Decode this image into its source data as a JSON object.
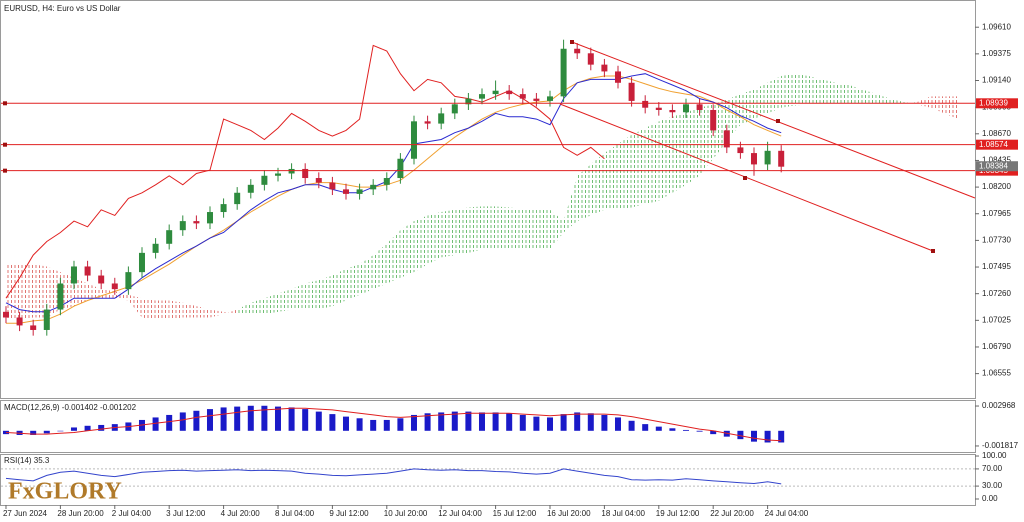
{
  "chart_data": [
    {
      "type": "candlestick",
      "title": "EURUSD, H4:  Euro vs US Dollar",
      "up_color": "#2e8b3e",
      "down_color": "#c8203a",
      "xlim": [
        -0.44,
        71.25
      ],
      "ylim": [
        1.0634,
        1.0985
      ],
      "yticks": [
        {
          "value": 1.0961,
          "label": "1.09610"
        },
        {
          "value": 1.09375,
          "label": "1.09375"
        },
        {
          "value": 1.0914,
          "label": "1.09140"
        },
        {
          "value": 1.08905,
          "label": "1.08905"
        },
        {
          "value": 1.0867,
          "label": "1.08670"
        },
        {
          "value": 1.08435,
          "label": "1.08435"
        },
        {
          "value": 1.082,
          "label": "1.08200"
        },
        {
          "value": 1.07965,
          "label": "1.07965"
        },
        {
          "value": 1.0773,
          "label": "1.07730"
        },
        {
          "value": 1.07495,
          "label": "1.07495"
        },
        {
          "value": 1.0726,
          "label": "1.07260"
        },
        {
          "value": 1.07025,
          "label": "1.07025"
        },
        {
          "value": 1.0679,
          "label": "1.06790"
        },
        {
          "value": 1.06555,
          "label": "1.06555"
        }
      ],
      "xticks": [
        {
          "value": 0,
          "label": "27 Jun 2024"
        },
        {
          "value": 4,
          "label": "28 Jun 20:00"
        },
        {
          "value": 8,
          "label": "2 Jul 04:00"
        },
        {
          "value": 12,
          "label": "3 Jul 12:00"
        },
        {
          "value": 16,
          "label": "4 Jul 20:00"
        },
        {
          "value": 20,
          "label": "8 Jul 04:00"
        },
        {
          "value": 24,
          "label": "9 Jul 12:00"
        },
        {
          "value": 28,
          "label": "10 Jul 20:00"
        },
        {
          "value": 32,
          "label": "12 Jul 04:00"
        },
        {
          "value": 36,
          "label": "15 Jul 12:00"
        },
        {
          "value": 40,
          "label": "16 Jul 20:00"
        },
        {
          "value": 44,
          "label": "18 Jul 04:00"
        },
        {
          "value": 48,
          "label": "19 Jul 12:00"
        },
        {
          "value": 52,
          "label": "22 Jul 20:00"
        },
        {
          "value": 56,
          "label": "24 Jul 04:00"
        }
      ],
      "open": [
        1.071,
        1.0705,
        1.0698,
        1.0694,
        1.0712,
        1.0735,
        1.075,
        1.0742,
        1.0735,
        1.073,
        1.0745,
        1.0762,
        1.077,
        1.0782,
        1.079,
        1.0788,
        1.0798,
        1.0805,
        1.0815,
        1.0822,
        1.083,
        1.0832,
        1.0836,
        1.0828,
        1.0824,
        1.0818,
        1.0814,
        1.0818,
        1.0822,
        1.0828,
        1.0845,
        1.0878,
        1.0876,
        1.0885,
        1.0893,
        1.0898,
        1.0902,
        1.0905,
        1.0902,
        1.0898,
        1.0896,
        1.09,
        1.0942,
        1.0938,
        1.0928,
        1.0922,
        1.0912,
        1.0896,
        1.089,
        1.0888,
        1.0886,
        1.0893,
        1.0888,
        1.087,
        1.0855,
        1.085,
        1.084,
        1.0852
      ],
      "high": [
        1.0715,
        1.071,
        1.0703,
        1.0717,
        1.074,
        1.0755,
        1.0755,
        1.0747,
        1.074,
        1.075,
        1.0767,
        1.0775,
        1.0787,
        1.0795,
        1.0795,
        1.0803,
        1.081,
        1.082,
        1.0827,
        1.0835,
        1.0837,
        1.0841,
        1.0841,
        1.0833,
        1.0829,
        1.0823,
        1.0823,
        1.0827,
        1.0833,
        1.085,
        1.0883,
        1.0883,
        1.089,
        1.0898,
        1.0903,
        1.0907,
        1.0914,
        1.091,
        1.0907,
        1.0903,
        1.0905,
        1.095,
        1.0947,
        1.0943,
        1.0933,
        1.0927,
        1.0917,
        1.0901,
        1.0895,
        1.0893,
        1.0898,
        1.0898,
        1.0893,
        1.0875,
        1.086,
        1.0855,
        1.086,
        1.0857
      ],
      "low": [
        1.07,
        1.0693,
        1.0689,
        1.0689,
        1.0707,
        1.073,
        1.0737,
        1.073,
        1.0725,
        1.0725,
        1.074,
        1.0757,
        1.0765,
        1.0777,
        1.0783,
        1.0783,
        1.0793,
        1.08,
        1.081,
        1.0817,
        1.0825,
        1.0827,
        1.0823,
        1.0819,
        1.0813,
        1.0809,
        1.0809,
        1.0813,
        1.0817,
        1.0823,
        1.084,
        1.0871,
        1.0871,
        1.088,
        1.0888,
        1.0893,
        1.0897,
        1.0897,
        1.0893,
        1.0891,
        1.0891,
        1.0895,
        1.0933,
        1.0923,
        1.0917,
        1.0907,
        1.0891,
        1.0885,
        1.0883,
        1.0881,
        1.0881,
        1.0883,
        1.0865,
        1.085,
        1.0845,
        1.083,
        1.0835,
        1.0833
      ],
      "close": [
        1.0705,
        1.0698,
        1.0694,
        1.0712,
        1.0735,
        1.075,
        1.0742,
        1.0735,
        1.073,
        1.0745,
        1.0762,
        1.077,
        1.0782,
        1.079,
        1.0788,
        1.0798,
        1.0805,
        1.0815,
        1.0822,
        1.083,
        1.0832,
        1.0836,
        1.0828,
        1.0824,
        1.0818,
        1.0814,
        1.0818,
        1.0822,
        1.0828,
        1.0845,
        1.0878,
        1.0876,
        1.0885,
        1.0893,
        1.0898,
        1.0902,
        1.0905,
        1.0902,
        1.0898,
        1.0896,
        1.09,
        1.0942,
        1.0938,
        1.0928,
        1.0922,
        1.0912,
        1.0896,
        1.089,
        1.0888,
        1.0886,
        1.0893,
        1.0888,
        1.087,
        1.0855,
        1.085,
        1.084,
        1.0852,
        1.0838
      ],
      "cloud": {
        "up_color": "#4caf50",
        "down_color": "#d9534f",
        "span_a": [
          1.0703,
          1.0703,
          1.0705,
          1.0705,
          1.0712,
          1.0715,
          1.072,
          1.0722,
          1.0722,
          1.072,
          1.0705,
          1.0703,
          1.0703,
          1.0705,
          1.0705,
          1.0705,
          1.0708,
          1.0712,
          1.0718,
          1.0722,
          1.0726,
          1.073,
          1.0735,
          1.0738,
          1.0742,
          1.0748,
          1.0752,
          1.076,
          1.077,
          1.0782,
          1.079,
          1.0795,
          1.0798,
          1.08,
          1.0802,
          1.0803,
          1.0803,
          1.0802,
          1.0801,
          1.08,
          1.08,
          1.079,
          1.083,
          1.084,
          1.085,
          1.0858,
          1.0866,
          1.0872,
          1.0878,
          1.0882,
          1.0886,
          1.089,
          1.0893,
          1.0897,
          1.0902,
          1.0906,
          1.0912,
          1.0918,
          1.092,
          1.0918,
          1.0915,
          1.0912,
          1.091,
          1.0906,
          1.0902,
          1.0898,
          1.0895,
          1.0893,
          1.089,
          1.0885,
          1.088
        ],
        "span_b": [
          1.0752,
          1.0752,
          1.0752,
          1.075,
          1.0745,
          1.074,
          1.0735,
          1.073,
          1.0728,
          1.0725,
          1.0722,
          1.072,
          1.072,
          1.0718,
          1.0715,
          1.0712,
          1.071,
          1.0708,
          1.0708,
          1.0708,
          1.071,
          1.0712,
          1.0712,
          1.0712,
          1.0715,
          1.072,
          1.0725,
          1.073,
          1.0735,
          1.074,
          1.0745,
          1.0752,
          1.0758,
          1.076,
          1.0762,
          1.0765,
          1.0765,
          1.0765,
          1.0765,
          1.0765,
          1.0765,
          1.078,
          1.079,
          1.0795,
          1.08,
          1.08,
          1.0802,
          1.0805,
          1.0808,
          1.0815,
          1.0822,
          1.083,
          1.0845,
          1.086,
          1.0875,
          1.088,
          1.0885,
          1.089,
          1.0892,
          1.0893,
          1.0893,
          1.0893,
          1.0893,
          1.0893,
          1.0893,
          1.0893,
          1.0893,
          1.0895,
          1.09,
          1.09,
          1.09
        ]
      },
      "lines": [
        {
          "color": "#e02020",
          "values": [
            1.0722,
            1.074,
            1.076,
            1.0772,
            1.078,
            1.079,
            1.0785,
            1.08,
            1.0795,
            1.081,
            1.0815,
            1.0822,
            1.083,
            1.0822,
            1.0832,
            1.0835,
            1.088,
            1.0875,
            1.087,
            1.0862,
            1.0872,
            1.0885,
            1.0878,
            1.087,
            1.0865,
            1.087,
            1.088,
            1.0945,
            1.094,
            1.092,
            1.0905,
            1.0915,
            1.0912,
            1.09,
            1.0898,
            1.0895,
            1.09,
            1.0905,
            1.0898,
            1.089,
            1.088,
            1.0855,
            1.0848,
            1.0855,
            1.0845,
            null,
            null,
            null,
            null,
            null,
            null,
            null,
            null,
            null,
            null,
            null,
            null,
            null
          ]
        },
        {
          "color": "#f0a030",
          "values": [
            1.07,
            1.07,
            1.0702,
            1.0703,
            1.0708,
            1.0715,
            1.072,
            1.0724,
            1.0728,
            1.0732,
            1.0738,
            1.0745,
            1.0752,
            1.076,
            1.0768,
            1.0775,
            1.0782,
            1.079,
            1.0798,
            1.0805,
            1.0812,
            1.0818,
            1.0822,
            1.0824,
            1.0824,
            1.0822,
            1.082,
            1.082,
            1.0822,
            1.0826,
            1.0835,
            1.0845,
            1.0855,
            1.0864,
            1.0872,
            1.088,
            1.0886,
            1.089,
            1.0893,
            1.0895,
            1.0896,
            1.0905,
            1.0912,
            1.0916,
            1.0918,
            1.0918,
            1.0915,
            1.0911,
            1.0907,
            1.0904,
            1.0902,
            1.09,
            1.0895,
            1.0888,
            1.0882,
            1.0875,
            1.087,
            1.0865
          ]
        },
        {
          "color": "#2a2ad0",
          "values": [
            1.0718,
            1.0712,
            1.071,
            1.071,
            1.0715,
            1.0722,
            1.0722,
            1.0722,
            1.0722,
            1.073,
            1.074,
            1.0748,
            1.0755,
            1.0762,
            1.0768,
            1.0775,
            1.078,
            1.079,
            1.08,
            1.0808,
            1.0815,
            1.0818,
            1.0822,
            1.0822,
            1.0818,
            1.0815,
            1.0815,
            1.082,
            1.0825,
            1.0838,
            1.0858,
            1.086,
            1.0862,
            1.0868,
            1.0872,
            1.0878,
            1.0885,
            1.0882,
            1.0882,
            1.088,
            1.0875,
            1.0898,
            1.0912,
            1.0915,
            1.0915,
            1.0915,
            1.0918,
            1.092,
            1.0915,
            1.091,
            1.0905,
            1.0898,
            1.0895,
            1.089,
            1.0883,
            1.0878,
            1.0872,
            1.0868
          ]
        }
      ],
      "levels": [
        {
          "value": 1.08939,
          "color": "#e02020"
        },
        {
          "value": 1.08574,
          "color": "#e02020"
        },
        {
          "value": 1.08345,
          "color": "#e02020"
        }
      ],
      "current_price": 1.08384
    },
    {
      "type": "macd",
      "label": "MACD(12,26,9) -0.001402 -0.001202",
      "color": "#1a1ac8",
      "signal_color": "#e02020",
      "ylim": [
        -0.00254,
        0.00369
      ],
      "yticks": [
        0.002968,
        -0.001817
      ],
      "values": [
        -0.0004,
        -0.0005,
        -0.0005,
        -0.0003,
        0.0,
        0.0004,
        0.0006,
        0.0007,
        0.0008,
        0.001,
        0.0013,
        0.0016,
        0.0019,
        0.0022,
        0.0024,
        0.0026,
        0.0028,
        0.0029,
        0.003,
        0.003,
        0.0029,
        0.0028,
        0.0026,
        0.0023,
        0.002,
        0.0017,
        0.0015,
        0.0013,
        0.0013,
        0.0015,
        0.0019,
        0.0021,
        0.0022,
        0.0023,
        0.0023,
        0.0022,
        0.0022,
        0.0021,
        0.0019,
        0.0017,
        0.0016,
        0.002,
        0.0022,
        0.0021,
        0.0019,
        0.0016,
        0.0012,
        0.0008,
        0.0005,
        0.0003,
        0.0001,
        -0.0001,
        -0.0004,
        -0.0007,
        -0.001,
        -0.0013,
        -0.0014,
        -0.0014
      ],
      "signal": [
        -0.0002,
        -0.0003,
        -0.0004,
        -0.0004,
        -0.0003,
        -0.0002,
        0.0,
        0.0002,
        0.0004,
        0.0005,
        0.0007,
        0.0009,
        0.0011,
        0.0013,
        0.0016,
        0.0018,
        0.002,
        0.0022,
        0.0024,
        0.0025,
        0.0026,
        0.0027,
        0.0027,
        0.0026,
        0.0025,
        0.0023,
        0.0021,
        0.0019,
        0.0017,
        0.0016,
        0.0017,
        0.0018,
        0.0019,
        0.002,
        0.0021,
        0.0021,
        0.0021,
        0.0021,
        0.002,
        0.0019,
        0.0018,
        0.0019,
        0.002,
        0.002,
        0.002,
        0.0019,
        0.0017,
        0.0014,
        0.0011,
        0.0008,
        0.0005,
        0.0002,
        0.0,
        -0.0003,
        -0.0006,
        -0.0009,
        -0.0011,
        -0.0012
      ]
    },
    {
      "type": "rsi",
      "label": "RSI(14) 35.3",
      "color": "#3344cc",
      "ylim": [
        -14,
        104.7
      ],
      "yticks": [
        {
          "value": 100,
          "label": "100.00"
        },
        {
          "value": 70,
          "label": "70.00"
        },
        {
          "value": 30,
          "label": "30.00"
        },
        {
          "value": 0,
          "label": "0.00"
        }
      ],
      "values": [
        48,
        45,
        42,
        55,
        62,
        65,
        60,
        55,
        52,
        57,
        62,
        64,
        66,
        67,
        65,
        66,
        67,
        68,
        66,
        67,
        66,
        65,
        60,
        58,
        55,
        54,
        56,
        58,
        60,
        65,
        70,
        68,
        67,
        68,
        66,
        66,
        64,
        63,
        60,
        58,
        60,
        70,
        65,
        60,
        55,
        52,
        45,
        44,
        45,
        44,
        47,
        45,
        42,
        40,
        38,
        36,
        40,
        35
      ]
    }
  ],
  "logo": "FxGLORY"
}
